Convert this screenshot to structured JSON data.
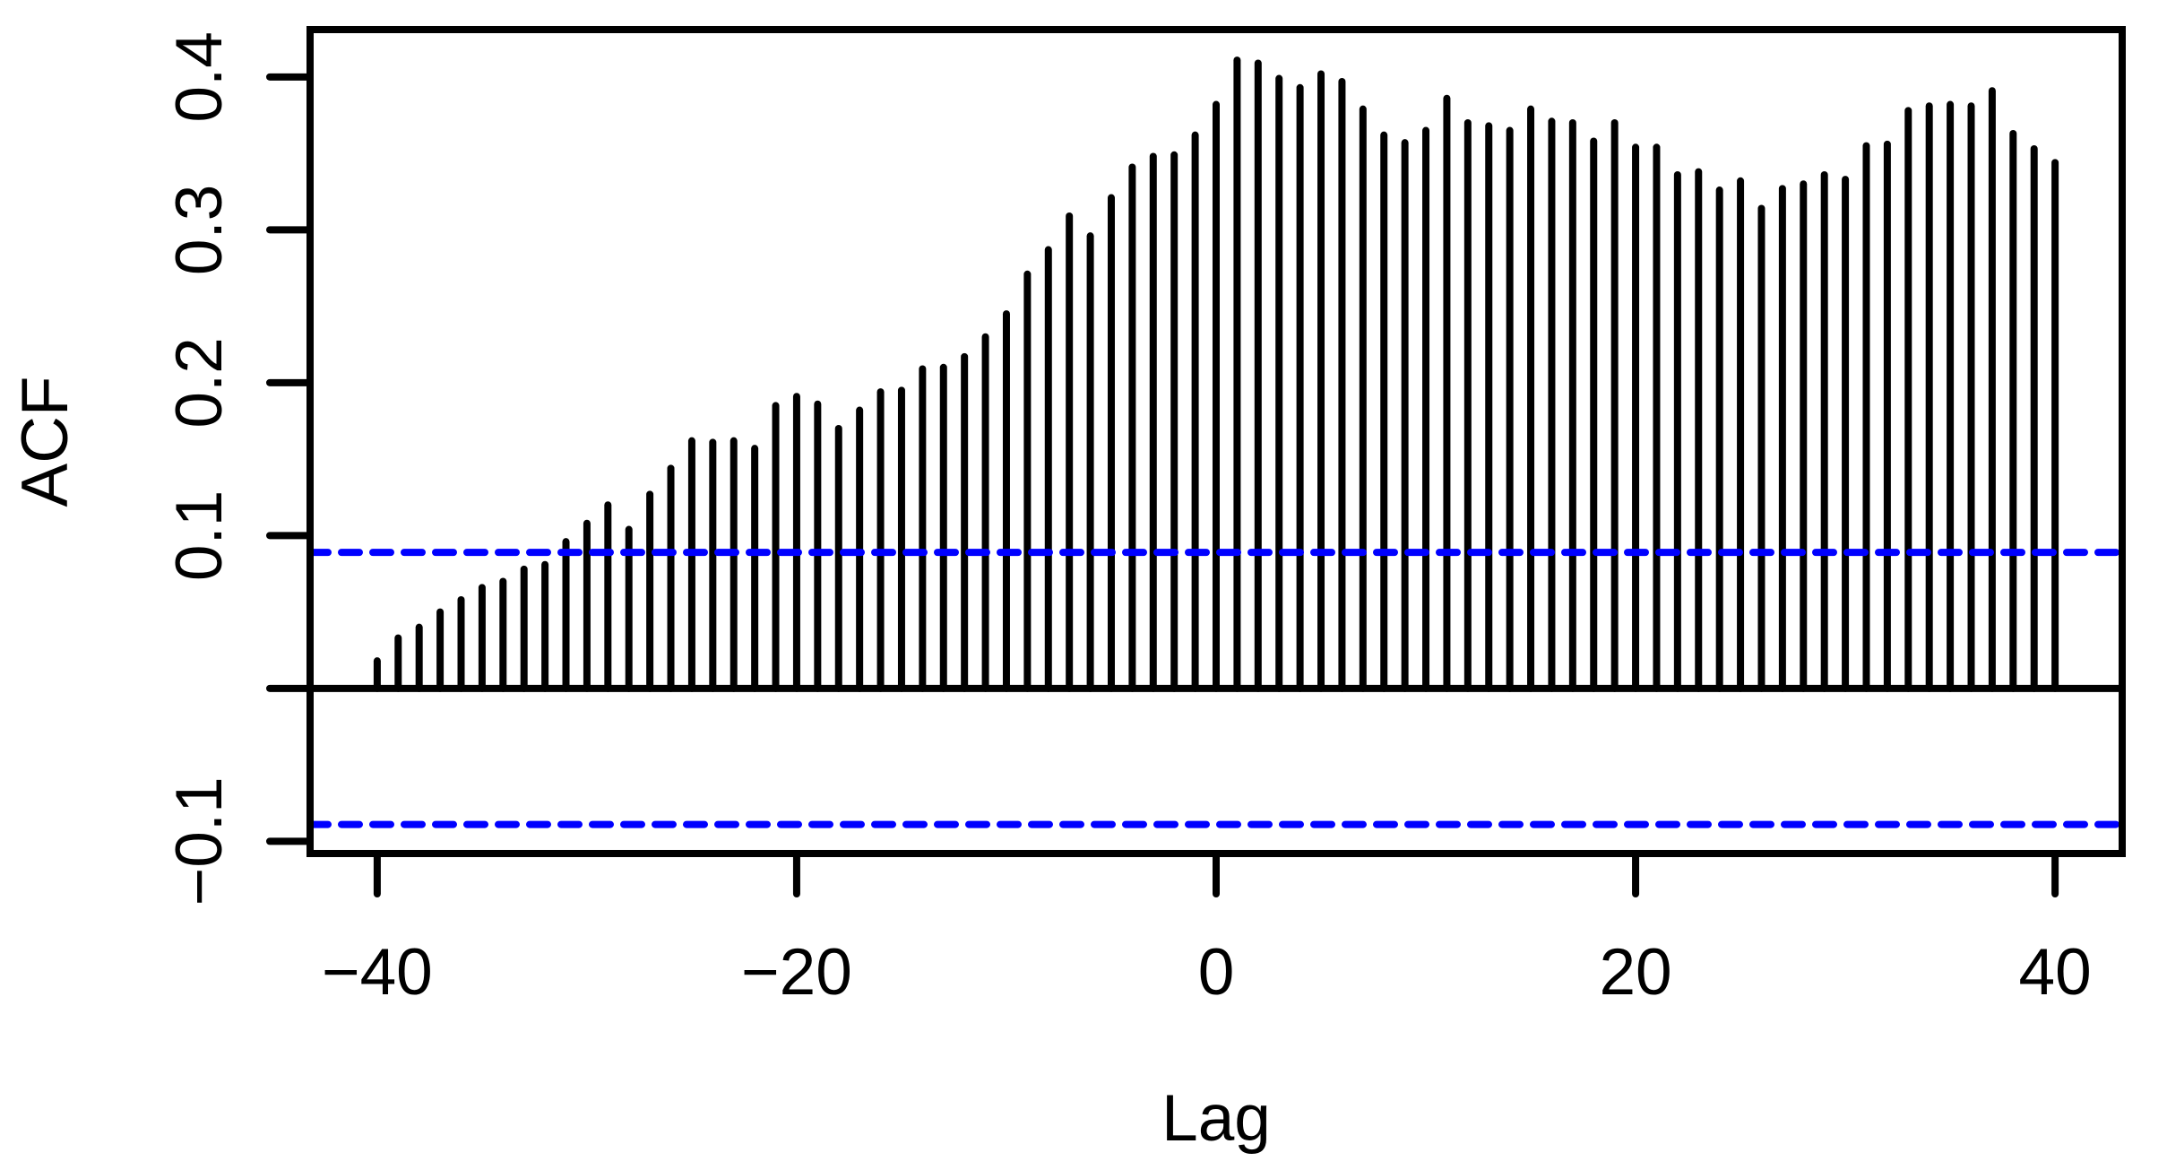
{
  "chart_data": {
    "type": "bar",
    "variant": "correlogram-spike-plot",
    "title": "",
    "xlabel": "Lag",
    "ylabel": "ACF",
    "x": [
      -40,
      -39,
      -38,
      -37,
      -36,
      -35,
      -34,
      -33,
      -32,
      -31,
      -30,
      -29,
      -28,
      -27,
      -26,
      -25,
      -24,
      -23,
      -22,
      -21,
      -20,
      -19,
      -18,
      -17,
      -16,
      -15,
      -14,
      -13,
      -12,
      -11,
      -10,
      -9,
      -8,
      -7,
      -6,
      -5,
      -4,
      -3,
      -2,
      -1,
      0,
      1,
      2,
      3,
      4,
      5,
      6,
      7,
      8,
      9,
      10,
      11,
      12,
      13,
      14,
      15,
      16,
      17,
      18,
      19,
      20,
      21,
      22,
      23,
      24,
      25,
      26,
      27,
      28,
      29,
      30,
      31,
      32,
      33,
      34,
      35,
      36,
      37,
      38,
      39,
      40
    ],
    "values": [
      0.018,
      0.033,
      0.04,
      0.05,
      0.058,
      0.066,
      0.07,
      0.078,
      0.081,
      0.096,
      0.108,
      0.12,
      0.104,
      0.127,
      0.144,
      0.162,
      0.161,
      0.162,
      0.157,
      0.185,
      0.191,
      0.186,
      0.17,
      0.182,
      0.194,
      0.195,
      0.209,
      0.21,
      0.217,
      0.23,
      0.245,
      0.271,
      0.287,
      0.309,
      0.296,
      0.321,
      0.341,
      0.348,
      0.349,
      0.362,
      0.382,
      0.411,
      0.409,
      0.399,
      0.393,
      0.402,
      0.397,
      0.379,
      0.362,
      0.357,
      0.365,
      0.386,
      0.37,
      0.368,
      0.365,
      0.379,
      0.371,
      0.37,
      0.358,
      0.37,
      0.354,
      0.354,
      0.336,
      0.338,
      0.326,
      0.332,
      0.314,
      0.327,
      0.33,
      0.336,
      0.333,
      0.355,
      0.356,
      0.378,
      0.381,
      0.382,
      0.381,
      0.391,
      0.363,
      0.353,
      0.344
    ],
    "zero_line": true,
    "confidence_bounds": {
      "upper": 0.089,
      "lower": -0.089,
      "line_style": "dashed",
      "color": "#0000FF"
    },
    "xlim": [
      -43.2,
      43.2
    ],
    "ylim": [
      -0.108,
      0.431
    ],
    "xticks": {
      "values": [
        -40,
        -20,
        0,
        20,
        40
      ],
      "labels": [
        "−40",
        "−20",
        "0",
        "20",
        "40"
      ]
    },
    "yticks": {
      "values": [
        0.4,
        0.3,
        0.2,
        0.1,
        0.0,
        -0.1
      ],
      "labels": [
        "0.4",
        "0.3",
        "0.2",
        "0.1",
        "",
        "−0.1"
      ]
    },
    "grid": false,
    "legend": "none",
    "colors": {
      "spike": "#000000",
      "frame": "#000000",
      "confidence": "#0000FF",
      "background": "#FFFFFF"
    }
  }
}
